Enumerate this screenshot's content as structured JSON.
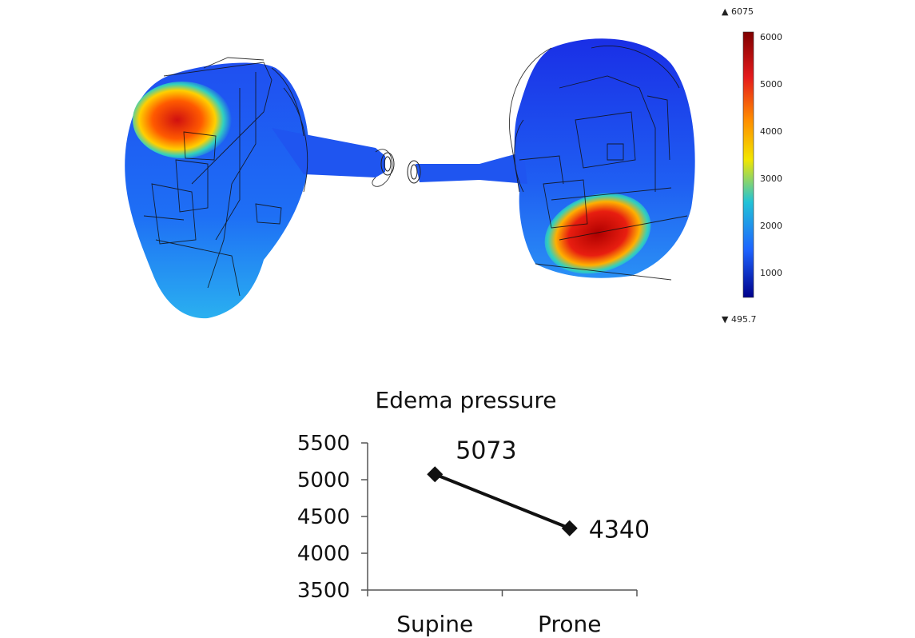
{
  "figure": {
    "colorbar": {
      "max_label": "▲ 6075",
      "min_label": "▼ 495.7",
      "ticks": [
        "6000",
        "5000",
        "4000",
        "3000",
        "2000",
        "1000"
      ],
      "colors": [
        "#7f0000",
        "#e41a1c",
        "#ff8c00",
        "#f2e600",
        "#22c3d6",
        "#1e64ff",
        "#00008b"
      ]
    }
  },
  "chart_data": {
    "type": "line",
    "title": "Edema pressure",
    "categories": [
      "Supine",
      "Prone"
    ],
    "series": [
      {
        "values": [
          5073,
          4340
        ],
        "data_labels": [
          "5073",
          "4340"
        ]
      }
    ],
    "ylim": [
      3500,
      5500
    ],
    "yticks": [
      3500,
      4000,
      4500,
      5000,
      5500
    ],
    "ytick_labels": [
      "3500",
      "4000",
      "4500",
      "5000",
      "5500"
    ],
    "grid": false,
    "legend": "none",
    "marker": "diamond",
    "line_color": "#111111"
  }
}
